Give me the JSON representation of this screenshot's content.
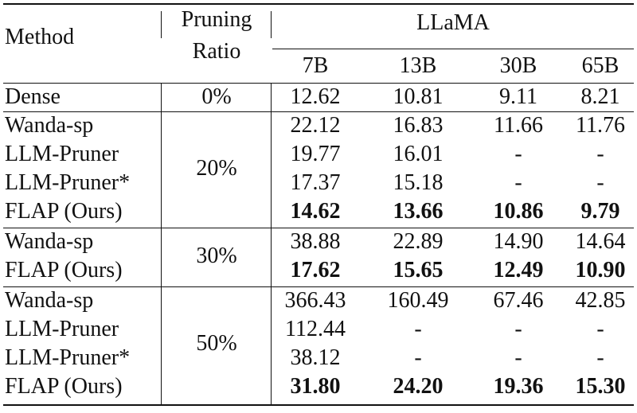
{
  "header": {
    "method": "Method",
    "pruning_ratio_line1": "Pruning",
    "pruning_ratio_line2": "Ratio",
    "model_family": "LLaMA",
    "sizes": [
      "7B",
      "13B",
      "30B",
      "65B"
    ]
  },
  "rows": [
    {
      "method": "Dense",
      "ratio": "0%",
      "values": [
        "12.62",
        "10.81",
        "9.11",
        "8.21"
      ],
      "bold": false
    },
    {
      "method": "Wanda-sp",
      "ratio": "20%",
      "values": [
        "22.12",
        "16.83",
        "11.66",
        "11.76"
      ],
      "bold": false
    },
    {
      "method": "LLM-Pruner",
      "ratio": "20%",
      "values": [
        "19.77",
        "16.01",
        "-",
        "-"
      ],
      "bold": false
    },
    {
      "method": "LLM-Pruner*",
      "ratio": "20%",
      "values": [
        "17.37",
        "15.18",
        "-",
        "-"
      ],
      "bold": false
    },
    {
      "method": "FLAP (Ours)",
      "ratio": "20%",
      "values": [
        "14.62",
        "13.66",
        "10.86",
        "9.79"
      ],
      "bold": true
    },
    {
      "method": "Wanda-sp",
      "ratio": "30%",
      "values": [
        "38.88",
        "22.89",
        "14.90",
        "14.64"
      ],
      "bold": false
    },
    {
      "method": "FLAP (Ours)",
      "ratio": "30%",
      "values": [
        "17.62",
        "15.65",
        "12.49",
        "10.90"
      ],
      "bold": true
    },
    {
      "method": "Wanda-sp",
      "ratio": "50%",
      "values": [
        "366.43",
        "160.49",
        "67.46",
        "42.85"
      ],
      "bold": false
    },
    {
      "method": "LLM-Pruner",
      "ratio": "50%",
      "values": [
        "112.44",
        "-",
        "-",
        "-"
      ],
      "bold": false
    },
    {
      "method": "LLM-Pruner*",
      "ratio": "50%",
      "values": [
        "38.12",
        "-",
        "-",
        "-"
      ],
      "bold": false
    },
    {
      "method": "FLAP (Ours)",
      "ratio": "50%",
      "values": [
        "31.80",
        "24.20",
        "19.36",
        "15.30"
      ],
      "bold": true
    }
  ],
  "groups": [
    {
      "ratio": "0%",
      "rows": 1
    },
    {
      "ratio": "20%",
      "rows": 4
    },
    {
      "ratio": "30%",
      "rows": 2
    },
    {
      "ratio": "50%",
      "rows": 4
    }
  ]
}
